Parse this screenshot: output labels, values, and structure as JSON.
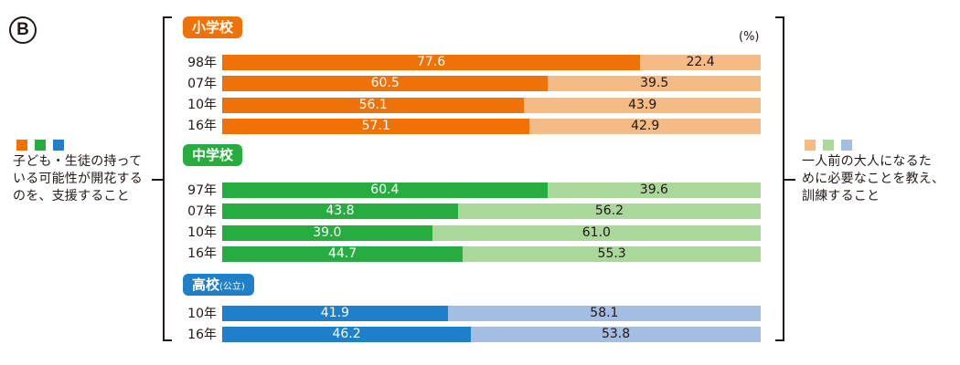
{
  "badge": "B",
  "unit": "(%)",
  "left_legend": {
    "text_lines": [
      "子ども・生徒の持って",
      "いる可能性が開花する",
      "のを、支援すること"
    ],
    "colors": [
      "#ee7208",
      "#27ac3f",
      "#1f7fc8"
    ]
  },
  "right_legend": {
    "text_lines": [
      "一人前の大人になるた",
      "めに必要なことを教え、",
      "訓練すること"
    ],
    "colors": [
      "#f6ba84",
      "#aad79a",
      "#a3bde3"
    ]
  },
  "chart_data": {
    "type": "bar",
    "orientation": "horizontal",
    "stacked": true,
    "xlim": [
      0,
      100
    ],
    "unit": "%",
    "series_names": [
      "子ども・生徒の持っている可能性が開花するのを、支援すること",
      "一人前の大人になるために必要なことを教え、訓練すること"
    ],
    "groups": [
      {
        "label": "小学校",
        "label_suffix": "",
        "color_primary": "#ee7208",
        "color_secondary": "#f6ba84",
        "rows": [
          {
            "year": "98年",
            "values": [
              77.6,
              22.4
            ],
            "labels": [
              "77.6",
              "22.4"
            ]
          },
          {
            "year": "07年",
            "values": [
              60.5,
              39.5
            ],
            "labels": [
              "60.5",
              "39.5"
            ]
          },
          {
            "year": "10年",
            "values": [
              56.1,
              43.9
            ],
            "labels": [
              "56.1",
              "43.9"
            ]
          },
          {
            "year": "16年",
            "values": [
              57.1,
              42.9
            ],
            "labels": [
              "57.1",
              "42.9"
            ]
          }
        ]
      },
      {
        "label": "中学校",
        "label_suffix": "",
        "color_primary": "#27ac3f",
        "color_secondary": "#aad79a",
        "rows": [
          {
            "year": "97年",
            "values": [
              60.4,
              39.6
            ],
            "labels": [
              "60.4",
              "39.6"
            ]
          },
          {
            "year": "07年",
            "values": [
              43.8,
              56.2
            ],
            "labels": [
              "43.8",
              "56.2"
            ]
          },
          {
            "year": "10年",
            "values": [
              39.0,
              61.0
            ],
            "labels": [
              "39.0",
              "61.0"
            ]
          },
          {
            "year": "16年",
            "values": [
              44.7,
              55.3
            ],
            "labels": [
              "44.7",
              "55.3"
            ]
          }
        ]
      },
      {
        "label": "高校",
        "label_suffix": "(公立)",
        "color_primary": "#1f7fc8",
        "color_secondary": "#a3bde3",
        "rows": [
          {
            "year": "10年",
            "values": [
              41.9,
              58.1
            ],
            "labels": [
              "41.9",
              "58.1"
            ]
          },
          {
            "year": "16年",
            "values": [
              46.2,
              53.8
            ],
            "labels": [
              "46.2",
              "53.8"
            ]
          }
        ]
      }
    ]
  }
}
